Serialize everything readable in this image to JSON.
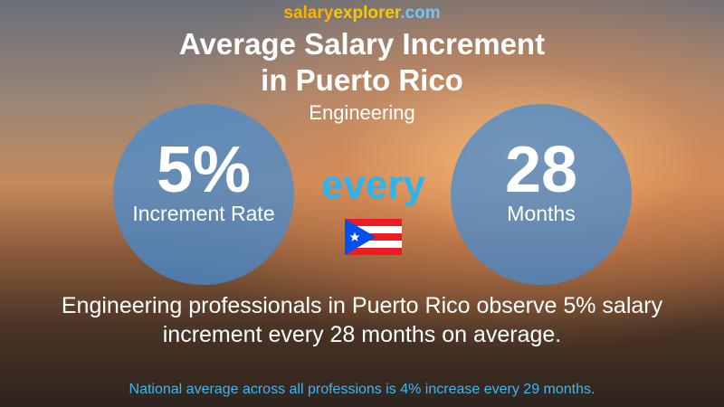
{
  "brand": {
    "part1": "salary",
    "part2": "explorer",
    "part3": ".com"
  },
  "title": {
    "line1": "Average Salary Increment",
    "line2": "in Puerto Rico"
  },
  "subtitle": "Engineering",
  "left_circle": {
    "value": "5%",
    "label": "Increment Rate"
  },
  "connector": "every",
  "right_circle": {
    "value": "28",
    "label": "Months"
  },
  "summary": "Engineering professionals in Puerto Rico observe 5% salary increment every 28 months on average.",
  "footnote": "National average across all professions is 4% increase every 29 months."
}
